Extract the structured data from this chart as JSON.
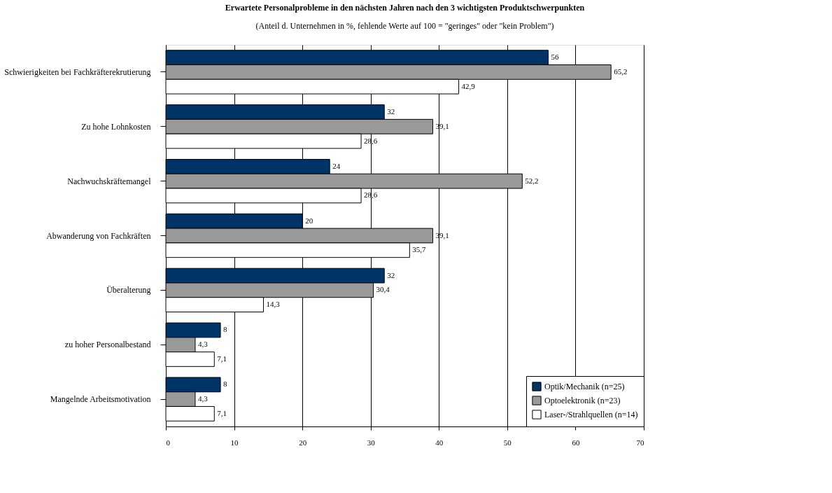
{
  "chart_data": {
    "type": "bar",
    "orientation": "horizontal",
    "title": "Erwartete Personalprobleme in den nächsten Jahren nach den 3 wichtigsten Produktschwerpunkten",
    "subtitle": "(Anteil d. Unternehmen in %, fehlende Werte auf 100 = \"geringes\" oder \"kein Problem\")",
    "categories": [
      "Schwierigkeiten bei Fachkräfterekrutierung",
      "Zu hohe Lohnkosten",
      "Nachwuchskräftemangel",
      "Abwanderung von Fachkräften",
      "Überalterung",
      "zu hoher Personalbestand",
      "Mangelnde Arbeitsmotivation"
    ],
    "series": [
      {
        "name": "Optik/Mechanik (n=25)",
        "color": "#003366",
        "values": [
          56,
          32,
          24,
          20,
          32,
          8,
          8
        ],
        "value_labels": [
          "56",
          "32",
          "24",
          "20",
          "32",
          "8",
          "8"
        ]
      },
      {
        "name": "Optoelektronik (n=23)",
        "color": "#999999",
        "values": [
          65.2,
          39.1,
          52.2,
          39.1,
          30.4,
          4.3,
          4.3
        ],
        "value_labels": [
          "65,2",
          "39,1",
          "52,2",
          "39,1",
          "30,4",
          "4,3",
          "4,3"
        ]
      },
      {
        "name": "Laser-/Strahlquellen (n=14)",
        "color": "#ffffff",
        "values": [
          42.9,
          28.6,
          28.6,
          35.7,
          14.3,
          7.1,
          7.1
        ],
        "value_labels": [
          "42,9",
          "28,6",
          "28,6",
          "35,7",
          "14,3",
          "7,1",
          "7,1"
        ]
      }
    ],
    "xlim": [
      0,
      70
    ],
    "xticks": [
      0,
      10,
      20,
      30,
      40,
      50,
      60,
      70
    ],
    "grid": "x",
    "legend": "bottom right"
  }
}
